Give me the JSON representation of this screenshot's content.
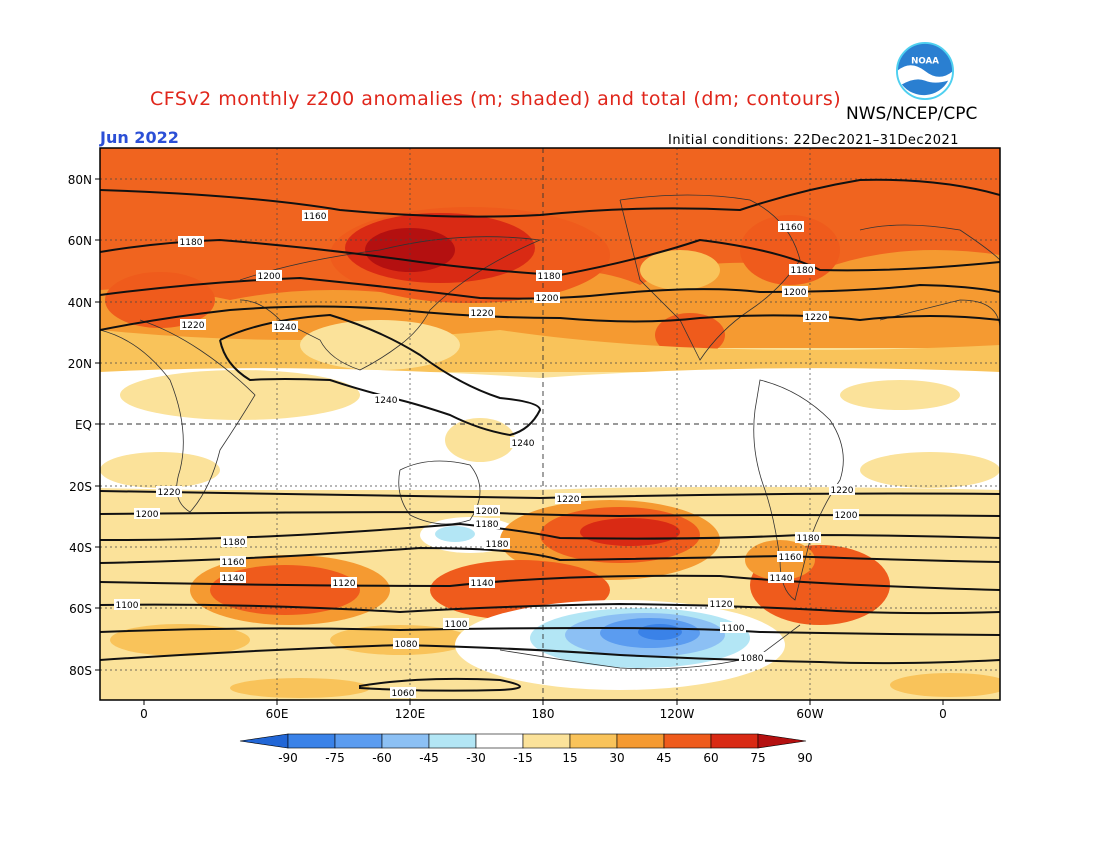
{
  "header": {
    "title": "CFSv2 monthly z200 anomalies (m; shaded) and total (dm; contours)",
    "agency": "NWS/NCEP/CPC",
    "month": "Jun 2022",
    "initial_conditions": "Initial conditions: 22Dec2021–31Dec2021"
  },
  "logo": {
    "icon": "noaa-logo",
    "text": "NOAA"
  },
  "axes": {
    "lat_labels": [
      "80N",
      "60N",
      "40N",
      "20N",
      "EQ",
      "20S",
      "40S",
      "60S",
      "80S"
    ],
    "lon_labels": [
      "0",
      "60E",
      "120E",
      "180",
      "120W",
      "60W",
      "0"
    ]
  },
  "colorbar": {
    "ticks": [
      "-90",
      "-75",
      "-60",
      "-45",
      "-30",
      "-15",
      "15",
      "30",
      "45",
      "60",
      "75",
      "90"
    ],
    "colors": [
      "#2166d6",
      "#3a82e8",
      "#5b9cf0",
      "#8cc0f4",
      "#b3e6f5",
      "#ffffff",
      "#fbe29a",
      "#f9c35a",
      "#f59a31",
      "#ef5b1c",
      "#d92a14",
      "#b41010"
    ]
  },
  "contour_labels": {
    "nh_1160_a": "1160",
    "nh_1180_a": "1180",
    "nh_1200_a": "1200",
    "nh_1220_a": "1220",
    "nh_1240_a": "1240",
    "nh_1180_b": "1180",
    "nh_1200_b": "1200",
    "nh_1220_b": "1220",
    "nh_1160_c": "1160",
    "nh_1180_c": "1180",
    "nh_1200_c": "1200",
    "nh_1220_c": "1220",
    "tr_1240_a": "1240",
    "tr_1240_b": "1240",
    "sh_1220_a": "1220",
    "sh_1200_a": "1200",
    "sh_1180_a": "1180",
    "sh_1160_a": "1160",
    "sh_1140_a": "1140",
    "sh_1120_a": "1120",
    "sh_1100_a": "1100",
    "sh_1220_b": "1220",
    "sh_1200_b": "1200",
    "sh_1180_b": "1180",
    "sh_1180_c": "1180",
    "sh_1140_b": "1140",
    "sh_1100_b": "1100",
    "sh_1080_a": "1080",
    "sh_1060_a": "1060",
    "sh_1220_c": "1220",
    "sh_1200_c": "1200",
    "sh_1180_d": "1180",
    "sh_1160_b": "1160",
    "sh_1140_c": "1140",
    "sh_1120_b": "1120",
    "sh_1100_c": "1100",
    "sh_1080_b": "1080"
  }
}
